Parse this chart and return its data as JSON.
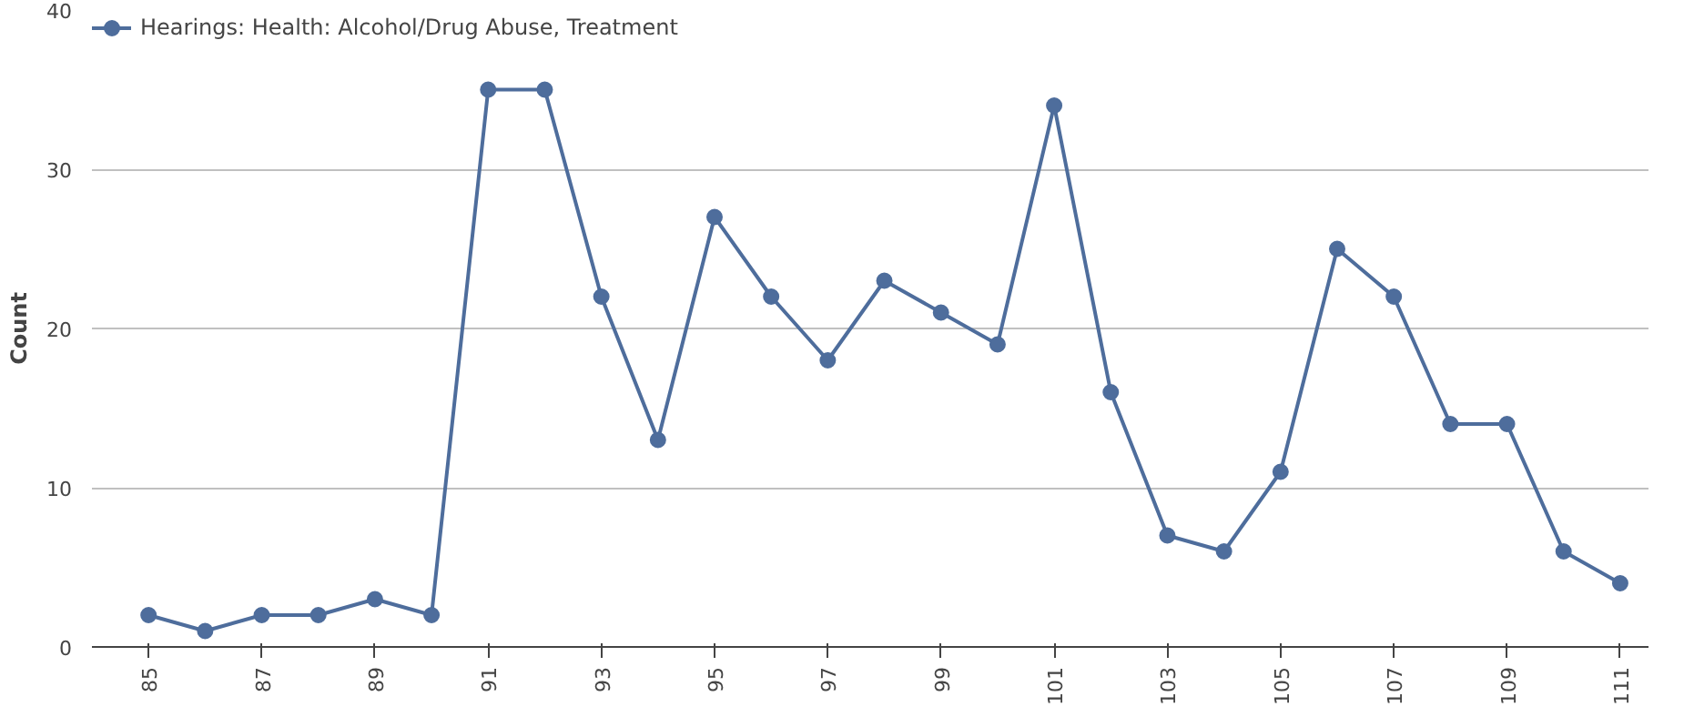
{
  "chart_data": {
    "type": "line",
    "ylabel": "Count",
    "x": [
      85,
      86,
      87,
      88,
      89,
      90,
      91,
      92,
      93,
      94,
      95,
      96,
      97,
      98,
      99,
      100,
      101,
      102,
      103,
      104,
      105,
      106,
      107,
      108,
      109,
      110,
      111
    ],
    "series": [
      {
        "name": "Hearings: Health: Alcohol/Drug Abuse, Treatment",
        "color": "#4e6d9c",
        "values": [
          2,
          1,
          2,
          2,
          3,
          2,
          35,
          35,
          22,
          13,
          27,
          22,
          18,
          23,
          21,
          19,
          34,
          16,
          7,
          6,
          11,
          25,
          22,
          14,
          14,
          6,
          4
        ]
      }
    ],
    "xlim": [
      84,
      111.5
    ],
    "xticks": [
      85,
      87,
      89,
      91,
      93,
      95,
      97,
      99,
      101,
      103,
      105,
      107,
      109,
      111
    ],
    "ylim": [
      0,
      40
    ],
    "yticks": [
      0,
      10,
      20,
      30,
      40
    ],
    "grid": "y",
    "legend": "top left",
    "marker": "circle",
    "line_style": "solid"
  }
}
